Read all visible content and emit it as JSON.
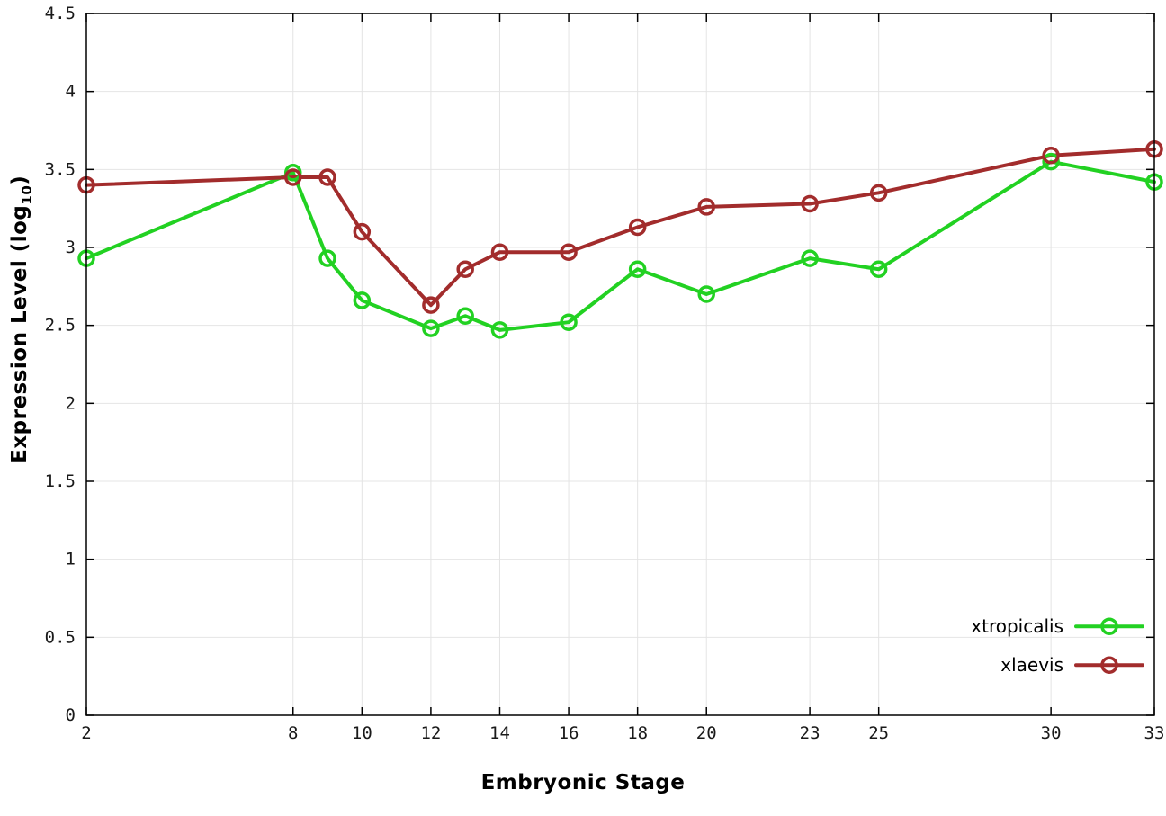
{
  "chart_data": {
    "type": "line",
    "title": "",
    "xlabel": "Embryonic Stage",
    "ylabel": "Expression Level (log10)",
    "ylabel_main": "Expression Level (log",
    "ylabel_sub": "10",
    "ylabel_close": ")",
    "xlim": [
      2,
      33
    ],
    "ylim": [
      0,
      4.5
    ],
    "xticks": [
      2,
      8,
      10,
      12,
      14,
      16,
      18,
      20,
      23,
      25,
      30,
      33
    ],
    "xtick_labels": [
      "2",
      "8",
      "10",
      "12",
      "14",
      "16",
      "18",
      "20",
      "23",
      "25",
      "30",
      "33"
    ],
    "yticks": [
      0,
      0.5,
      1,
      1.5,
      2,
      2.5,
      3,
      3.5,
      4,
      4.5
    ],
    "ytick_labels": [
      "0",
      "0.5",
      "1",
      "1.5",
      "2",
      "2.5",
      "3",
      "3.5",
      "4",
      "4.5"
    ],
    "grid": true,
    "legend_position": "bottom-right",
    "x": [
      2,
      8,
      9,
      10,
      12,
      13,
      14,
      16,
      18,
      20,
      23,
      25,
      30,
      33
    ],
    "series": [
      {
        "name": "xtropicalis",
        "color": "#22d122",
        "marker": "open-circle",
        "values": [
          2.93,
          3.48,
          2.93,
          2.66,
          2.48,
          2.56,
          2.47,
          2.52,
          2.86,
          2.7,
          2.93,
          2.86,
          3.55,
          3.42
        ]
      },
      {
        "name": "xlaevis",
        "color": "#a22c2c",
        "marker": "open-circle",
        "values": [
          3.4,
          3.45,
          3.45,
          3.1,
          2.63,
          2.86,
          2.97,
          2.97,
          3.13,
          3.26,
          3.28,
          3.35,
          3.59,
          3.63
        ]
      }
    ],
    "colors": {
      "grid": "#e4e4e4",
      "border": "#000000",
      "tick_text": "#1a1a1a",
      "background": "#ffffff"
    }
  }
}
